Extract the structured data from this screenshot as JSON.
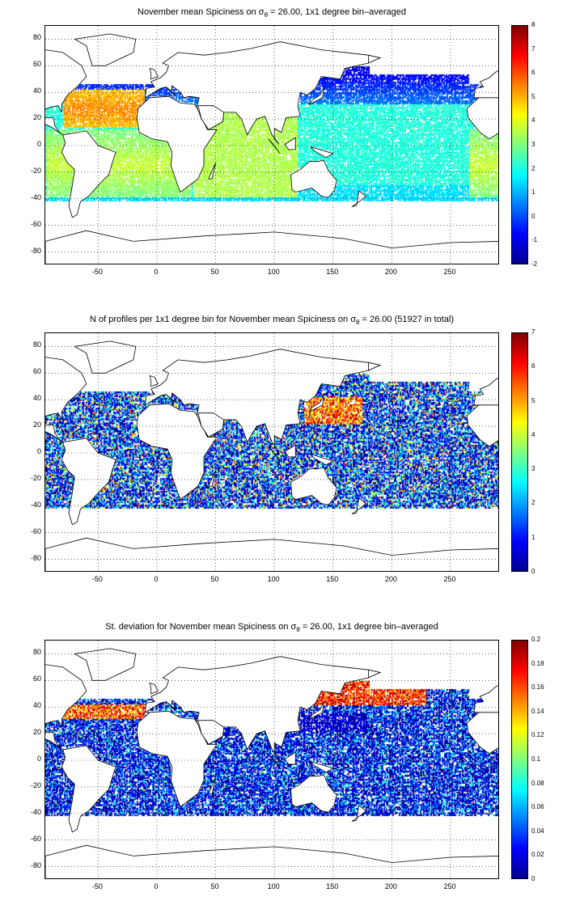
{
  "panels": [
    {
      "title_pre": "November mean Spiciness on ",
      "title_sigma": "σ",
      "title_sub": "θ",
      "title_post": " = 26.00, 1x1 degree bin–averaged",
      "colorbar": {
        "min": -2,
        "max": 8,
        "ticks": [
          "8",
          "7",
          "6",
          "5",
          "4",
          "3",
          "2",
          "1",
          "0",
          "-1",
          "-2"
        ]
      },
      "field": "spice"
    },
    {
      "title_pre": "N of profiles per 1x1 degree bin for November mean Spiciness on ",
      "title_sigma": "σ",
      "title_sub": "θ",
      "title_post": " = 26.00 (51927 in total)",
      "colorbar": {
        "min": 0,
        "max": 7,
        "ticks": [
          "7",
          "6",
          "5",
          "4",
          "3",
          "2",
          "1",
          "0"
        ]
      },
      "field": "count"
    },
    {
      "title_pre": "St. deviation for November mean Spiciness on ",
      "title_sigma": "σ",
      "title_sub": "θ",
      "title_post": " = 26.00, 1x1 degree bin–averaged",
      "colorbar": {
        "min": 0,
        "max": 0.2,
        "ticks": [
          "0.2",
          "0.18",
          "0.16",
          "0.14",
          "0.12",
          "0.1",
          "0.08",
          "0.06",
          "0.04",
          "0.02",
          "0"
        ]
      },
      "field": "std"
    }
  ],
  "axes": {
    "xlim": [
      -95,
      292
    ],
    "ylim": [
      -90,
      90
    ],
    "xticks": [
      "-50",
      "0",
      "50",
      "100",
      "150",
      "200",
      "250"
    ],
    "yticks": [
      "80",
      "60",
      "40",
      "20",
      "0",
      "-20",
      "-40",
      "-60",
      "-80"
    ],
    "grid": "dotted"
  },
  "colormap": "jet"
}
